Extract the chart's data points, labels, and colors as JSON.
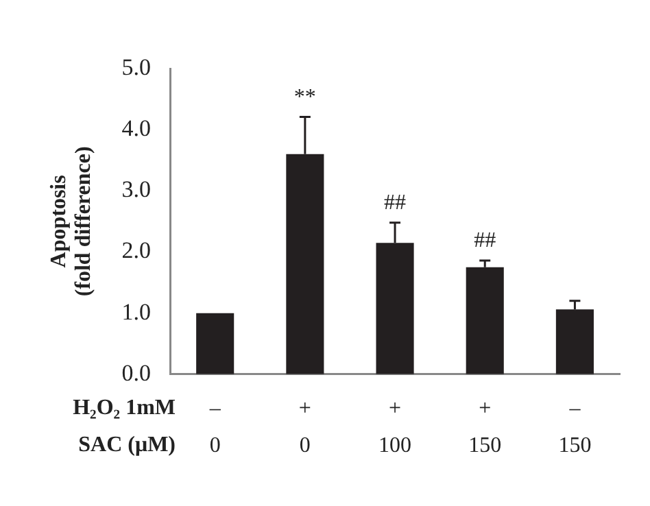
{
  "chart_data": {
    "type": "bar",
    "ylabel": "Apoptosis\n(fold difference)",
    "xlabel": "H₂O₂ 1mM\nSAC (μM)",
    "categories": [
      "–\n0",
      "+\n0",
      "+\n100",
      "+\n150",
      "–\n150"
    ],
    "values": [
      1.0,
      3.6,
      2.15,
      1.75,
      1.06
    ],
    "errors": [
      null,
      [
        3.6,
        4.21
      ],
      [
        2.15,
        2.48
      ],
      [
        1.75,
        1.86
      ],
      [
        1.06,
        1.2
      ]
    ],
    "color": "#231f20",
    "ylim": [
      0,
      5
    ],
    "yticks": [
      {
        "value": 0,
        "label": "0.0"
      },
      {
        "value": 1,
        "label": "1.0"
      },
      {
        "value": 2,
        "label": "2.0"
      },
      {
        "value": 3,
        "label": "3.0"
      },
      {
        "value": 4,
        "label": "4.0"
      },
      {
        "value": 5,
        "label": "5.0"
      }
    ],
    "annotations": [
      {
        "text": "**",
        "x": "+\n0",
        "y": 4.21
      },
      {
        "text": "##",
        "x": "+\n100",
        "y": 2.48
      },
      {
        "text": "##",
        "x": "+\n150",
        "y": 1.86
      }
    ],
    "grid": false,
    "legend": false
  }
}
